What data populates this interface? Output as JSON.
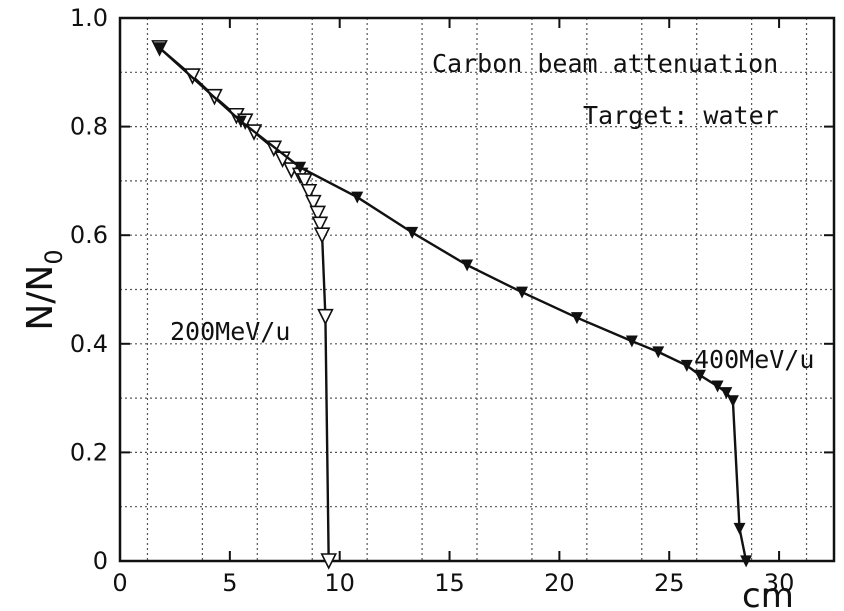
{
  "chart_data": {
    "type": "line",
    "title": "",
    "annotations": {
      "line1": "Carbon beam attenuation",
      "line2": "Target: water"
    },
    "xlabel": "",
    "x_unit_label": "cm",
    "ylabel": "N/N",
    "ylabel_subscript": "0",
    "xlim": [
      0,
      32.5
    ],
    "ylim": [
      0,
      1.0
    ],
    "x_ticks": [
      0,
      5,
      10,
      15,
      20,
      25,
      30
    ],
    "x_tick_labels": [
      "0",
      "5",
      "10",
      "15",
      "20",
      "25",
      "30"
    ],
    "y_ticks": [
      0,
      0.2,
      0.4,
      0.6,
      0.8,
      1.0
    ],
    "y_tick_labels": [
      "0",
      "0.2",
      "0.4",
      "0.6",
      "0.8",
      "1.0"
    ],
    "grid": true,
    "series": [
      {
        "name": "200MeV/u",
        "marker": "open-triangle-down",
        "points": [
          [
            1.8,
            0.945
          ],
          [
            3.3,
            0.893
          ],
          [
            4.3,
            0.855
          ],
          [
            5.3,
            0.82
          ],
          [
            5.7,
            0.81
          ],
          [
            6.1,
            0.79
          ],
          [
            7.0,
            0.76
          ],
          [
            7.4,
            0.74
          ],
          [
            7.8,
            0.72
          ],
          [
            8.2,
            0.71
          ],
          [
            8.4,
            0.7
          ],
          [
            8.6,
            0.68
          ],
          [
            8.8,
            0.66
          ],
          [
            9.0,
            0.64
          ],
          [
            9.1,
            0.62
          ],
          [
            9.2,
            0.6
          ],
          [
            9.35,
            0.45
          ],
          [
            9.5,
            0.0
          ]
        ]
      },
      {
        "name": "400MeV/u",
        "marker": "filled-triangle-down",
        "points": [
          [
            1.8,
            0.945
          ],
          [
            5.5,
            0.81
          ],
          [
            8.2,
            0.725
          ],
          [
            10.8,
            0.67
          ],
          [
            13.3,
            0.605
          ],
          [
            15.8,
            0.545
          ],
          [
            18.3,
            0.495
          ],
          [
            20.8,
            0.448
          ],
          [
            23.3,
            0.405
          ],
          [
            24.5,
            0.385
          ],
          [
            25.8,
            0.36
          ],
          [
            26.4,
            0.342
          ],
          [
            27.2,
            0.322
          ],
          [
            27.6,
            0.31
          ],
          [
            27.9,
            0.295
          ],
          [
            28.2,
            0.06
          ],
          [
            28.5,
            0.0
          ]
        ]
      }
    ]
  }
}
